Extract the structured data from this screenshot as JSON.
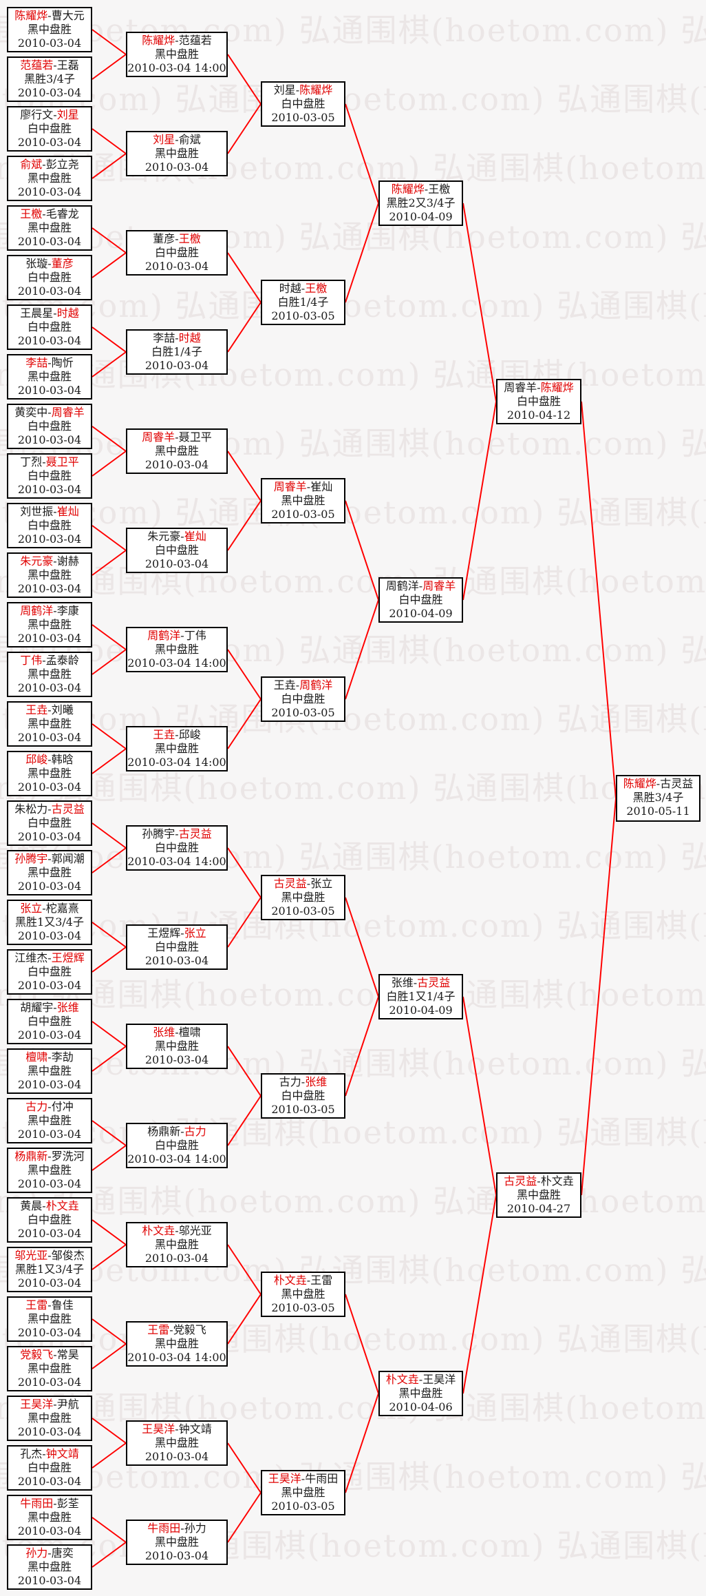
{
  "page": {
    "background": "#f7f6f6"
  },
  "separator": "-",
  "watermark": {
    "text": "弘通围棋(hoetom.com)",
    "color": "#ebe6e6"
  },
  "colors": {
    "winner_name": "#e00000",
    "player_name": "#1a1a1a",
    "connector": "#ff0000",
    "box_border": "#000000",
    "box_background": "#ffffff",
    "text": "#1a1a1a",
    "page_background": "#f7f6f6"
  },
  "bracket": {
    "rounds": [
      {
        "name": "round-of-64",
        "matches": [
          {
            "p1": "陈耀烨",
            "p2": "曹大元",
            "winner": "p1",
            "result": "黑中盘胜",
            "date": "2010-03-04"
          },
          {
            "p1": "范蕴若",
            "p2": "王磊",
            "winner": "p1",
            "result": "黑胜3/4子",
            "date": "2010-03-04"
          },
          {
            "p1": "廖行文",
            "p2": "刘星",
            "winner": "p2",
            "result": "白中盘胜",
            "date": "2010-03-04"
          },
          {
            "p1": "俞斌",
            "p2": "彭立尧",
            "winner": "p1",
            "result": "黑中盘胜",
            "date": "2010-03-04"
          },
          {
            "p1": "王檄",
            "p2": "毛睿龙",
            "winner": "p1",
            "result": "黑中盘胜",
            "date": "2010-03-04"
          },
          {
            "p1": "张璇",
            "p2": "董彦",
            "winner": "p2",
            "result": "白中盘胜",
            "date": "2010-03-04"
          },
          {
            "p1": "王晨星",
            "p2": "时越",
            "winner": "p2",
            "result": "白中盘胜",
            "date": "2010-03-04"
          },
          {
            "p1": "李喆",
            "p2": "陶忻",
            "winner": "p1",
            "result": "黑中盘胜",
            "date": "2010-03-04"
          },
          {
            "p1": "黄奕中",
            "p2": "周睿羊",
            "winner": "p2",
            "result": "白中盘胜",
            "date": "2010-03-04"
          },
          {
            "p1": "丁烈",
            "p2": "聂卫平",
            "winner": "p2",
            "result": "白中盘胜",
            "date": "2010-03-04"
          },
          {
            "p1": "刘世振",
            "p2": "崔灿",
            "winner": "p2",
            "result": "白中盘胜",
            "date": "2010-03-04"
          },
          {
            "p1": "朱元豪",
            "p2": "谢赫",
            "winner": "p1",
            "result": "黑中盘胜",
            "date": "2010-03-04"
          },
          {
            "p1": "周鹤洋",
            "p2": "李康",
            "winner": "p1",
            "result": "黑中盘胜",
            "date": "2010-03-04"
          },
          {
            "p1": "丁伟",
            "p2": "孟泰龄",
            "winner": "p1",
            "result": "黑中盘胜",
            "date": "2010-03-04"
          },
          {
            "p1": "王垚",
            "p2": "刘曦",
            "winner": "p1",
            "result": "黑中盘胜",
            "date": "2010-03-04"
          },
          {
            "p1": "邱峻",
            "p2": "韩晗",
            "winner": "p1",
            "result": "黑中盘胜",
            "date": "2010-03-04"
          },
          {
            "p1": "朱松力",
            "p2": "古灵益",
            "winner": "p2",
            "result": "白中盘胜",
            "date": "2010-03-04"
          },
          {
            "p1": "孙腾宇",
            "p2": "郭闻潮",
            "winner": "p1",
            "result": "黑中盘胜",
            "date": "2010-03-04"
          },
          {
            "p1": "张立",
            "p2": "柁嘉熹",
            "winner": "p1",
            "result": "黑胜1又3/4子",
            "date": "2010-03-04"
          },
          {
            "p1": "江维杰",
            "p2": "王煜辉",
            "winner": "p2",
            "result": "白中盘胜",
            "date": "2010-03-04"
          },
          {
            "p1": "胡耀宇",
            "p2": "张维",
            "winner": "p2",
            "result": "白中盘胜",
            "date": "2010-03-04"
          },
          {
            "p1": "檀啸",
            "p2": "李劼",
            "winner": "p1",
            "result": "黑中盘胜",
            "date": "2010-03-04"
          },
          {
            "p1": "古力",
            "p2": "付冲",
            "winner": "p1",
            "result": "黑中盘胜",
            "date": "2010-03-04"
          },
          {
            "p1": "杨鼎新",
            "p2": "罗洗河",
            "winner": "p1",
            "result": "黑中盘胜",
            "date": "2010-03-04"
          },
          {
            "p1": "黄晨",
            "p2": "朴文垚",
            "winner": "p2",
            "result": "白中盘胜",
            "date": "2010-03-04"
          },
          {
            "p1": "邬光亚",
            "p2": "邹俊杰",
            "winner": "p1",
            "result": "黑胜1又3/4子",
            "date": "2010-03-04"
          },
          {
            "p1": "王雷",
            "p2": "鲁佳",
            "winner": "p1",
            "result": "黑中盘胜",
            "date": "2010-03-04"
          },
          {
            "p1": "党毅飞",
            "p2": "常昊",
            "winner": "p1",
            "result": "黑中盘胜",
            "date": "2010-03-04"
          },
          {
            "p1": "王昊洋",
            "p2": "尹航",
            "winner": "p1",
            "result": "黑中盘胜",
            "date": "2010-03-04"
          },
          {
            "p1": "孔杰",
            "p2": "钟文靖",
            "winner": "p2",
            "result": "白中盘胜",
            "date": "2010-03-04"
          },
          {
            "p1": "牛雨田",
            "p2": "彭荃",
            "winner": "p1",
            "result": "黑中盘胜",
            "date": "2010-03-04"
          },
          {
            "p1": "孙力",
            "p2": "唐奕",
            "winner": "p1",
            "result": "黑中盘胜",
            "date": "2010-03-04"
          }
        ]
      },
      {
        "name": "round-of-32",
        "matches": [
          {
            "p1": "陈耀烨",
            "p2": "范蕴若",
            "winner": "p1",
            "result": "黑中盘胜",
            "date": "2010-03-04 14:00"
          },
          {
            "p1": "刘星",
            "p2": "俞斌",
            "winner": "p1",
            "result": "黑中盘胜",
            "date": "2010-03-04"
          },
          {
            "p1": "董彦",
            "p2": "王檄",
            "winner": "p2",
            "result": "白中盘胜",
            "date": "2010-03-04"
          },
          {
            "p1": "李喆",
            "p2": "时越",
            "winner": "p2",
            "result": "白胜1/4子",
            "date": "2010-03-04"
          },
          {
            "p1": "周睿羊",
            "p2": "聂卫平",
            "winner": "p1",
            "result": "黑中盘胜",
            "date": "2010-03-04"
          },
          {
            "p1": "朱元豪",
            "p2": "崔灿",
            "winner": "p2",
            "result": "白中盘胜",
            "date": "2010-03-04"
          },
          {
            "p1": "周鹤洋",
            "p2": "丁伟",
            "winner": "p1",
            "result": "黑中盘胜",
            "date": "2010-03-04 14:00"
          },
          {
            "p1": "王垚",
            "p2": "邱峻",
            "winner": "p1",
            "result": "黑中盘胜",
            "date": "2010-03-04 14:00"
          },
          {
            "p1": "孙腾宇",
            "p2": "古灵益",
            "winner": "p2",
            "result": "白中盘胜",
            "date": "2010-03-04 14:00"
          },
          {
            "p1": "王煜辉",
            "p2": "张立",
            "winner": "p2",
            "result": "白中盘胜",
            "date": "2010-03-04"
          },
          {
            "p1": "张维",
            "p2": "檀啸",
            "winner": "p1",
            "result": "黑中盘胜",
            "date": "2010-03-04"
          },
          {
            "p1": "杨鼎新",
            "p2": "古力",
            "winner": "p2",
            "result": "白中盘胜",
            "date": "2010-03-04 14:00"
          },
          {
            "p1": "朴文垚",
            "p2": "邬光亚",
            "winner": "p1",
            "result": "黑中盘胜",
            "date": "2010-03-04"
          },
          {
            "p1": "王雷",
            "p2": "党毅飞",
            "winner": "p1",
            "result": "黑中盘胜",
            "date": "2010-03-04 14:00"
          },
          {
            "p1": "王昊洋",
            "p2": "钟文靖",
            "winner": "p1",
            "result": "黑中盘胜",
            "date": "2010-03-04"
          },
          {
            "p1": "牛雨田",
            "p2": "孙力",
            "winner": "p1",
            "result": "黑中盘胜",
            "date": "2010-03-04"
          }
        ]
      },
      {
        "name": "round-of-16",
        "matches": [
          {
            "p1": "刘星",
            "p2": "陈耀烨",
            "winner": "p2",
            "result": "白中盘胜",
            "date": "2010-03-05"
          },
          {
            "p1": "时越",
            "p2": "王檄",
            "winner": "p2",
            "result": "白胜1/4子",
            "date": "2010-03-05"
          },
          {
            "p1": "周睿羊",
            "p2": "崔灿",
            "winner": "p1",
            "result": "黑中盘胜",
            "date": "2010-03-05"
          },
          {
            "p1": "王垚",
            "p2": "周鹤洋",
            "winner": "p2",
            "result": "白中盘胜",
            "date": "2010-03-05"
          },
          {
            "p1": "古灵益",
            "p2": "张立",
            "winner": "p1",
            "result": "黑中盘胜",
            "date": "2010-03-05"
          },
          {
            "p1": "古力",
            "p2": "张维",
            "winner": "p2",
            "result": "白中盘胜",
            "date": "2010-03-05"
          },
          {
            "p1": "朴文垚",
            "p2": "王雷",
            "winner": "p1",
            "result": "黑中盘胜",
            "date": "2010-03-05"
          },
          {
            "p1": "王昊洋",
            "p2": "牛雨田",
            "winner": "p1",
            "result": "黑中盘胜",
            "date": "2010-03-05"
          }
        ]
      },
      {
        "name": "quarterfinals",
        "matches": [
          {
            "p1": "陈耀烨",
            "p2": "王檄",
            "winner": "p1",
            "result": "黑胜2又3/4子",
            "date": "2010-04-09"
          },
          {
            "p1": "周鹤洋",
            "p2": "周睿羊",
            "winner": "p2",
            "result": "白中盘胜",
            "date": "2010-04-09"
          },
          {
            "p1": "张维",
            "p2": "古灵益",
            "winner": "p2",
            "result": "白胜1又1/4子",
            "date": "2010-04-09"
          },
          {
            "p1": "朴文垚",
            "p2": "王昊洋",
            "winner": "p1",
            "result": "黑中盘胜",
            "date": "2010-04-06"
          }
        ]
      },
      {
        "name": "semifinals",
        "matches": [
          {
            "p1": "周睿羊",
            "p2": "陈耀烨",
            "winner": "p2",
            "result": "白中盘胜",
            "date": "2010-04-12"
          },
          {
            "p1": "古灵益",
            "p2": "朴文垚",
            "winner": "p1",
            "result": "黑中盘胜",
            "date": "2010-04-27"
          }
        ]
      },
      {
        "name": "final",
        "matches": [
          {
            "p1": "陈耀烨",
            "p2": "古灵益",
            "winner": "p1",
            "result": "黑胜3/4子",
            "date": "2010-05-11"
          }
        ]
      }
    ]
  }
}
